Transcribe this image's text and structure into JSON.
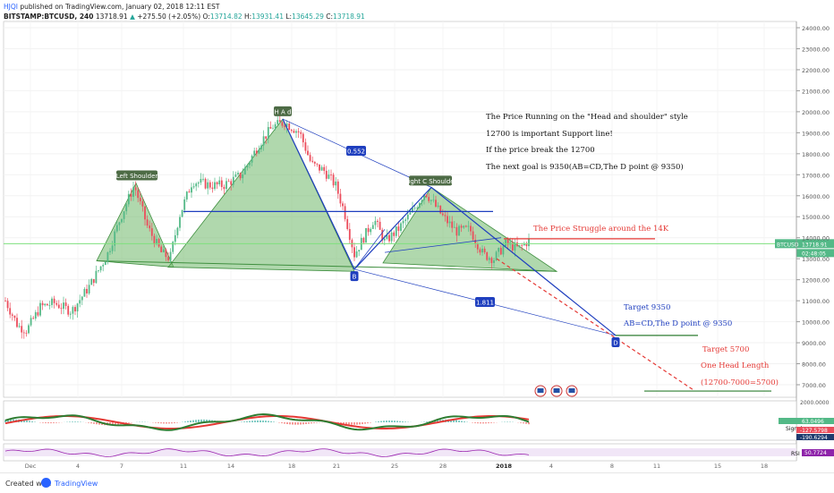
{
  "header": {
    "publisher": "HJQI",
    "published_line": "published on TradingView.com, January 02, 2018 12:11 EST",
    "symbol": "BITSTAMP:BTCUSD, 240",
    "last": "13718.91",
    "change": "+275.50 (+2.05%)",
    "ohlc": {
      "o_label": "O:",
      "o": "13714.82",
      "h_label": "H:",
      "h": "13931.41",
      "l_label": "L:",
      "l": "13645.29",
      "c_label": "C:",
      "c": "13718.91"
    }
  },
  "footer": {
    "created_with": "Created with",
    "brand": "TradingView"
  },
  "colors": {
    "up": "#26a69a",
    "down": "#ef5350",
    "candle_up": "#53b987",
    "candle_down": "#eb4d5c",
    "pattern_fill": "#6fb86a",
    "blue": "#1f3fbf",
    "red": "#e53935",
    "green_line": "#2e7d32",
    "price_line": "#7ee07e"
  },
  "chart_data": {
    "type": "candlestick",
    "symbol": "BITSTAMP:BTCUSD",
    "timeframe": "240",
    "y_axis": {
      "ticks": [
        24000,
        23000,
        22000,
        21000,
        20000,
        19000,
        18000,
        17000,
        16000,
        15000,
        14000,
        13000,
        12000,
        11000,
        10000,
        9000,
        8000,
        7000
      ],
      "tick_labels": [
        "24000.00",
        "23000.00",
        "22000.00",
        "21000.00",
        "20000.00",
        "19000.00",
        "18000.00",
        "17000.00",
        "16000.00",
        "15000.00",
        "14000.00",
        "13000.00",
        "12000.00",
        "11000.00",
        "10000.00",
        "9000.00",
        "8000.00",
        "7000.00"
      ],
      "range": [
        6700,
        24200
      ]
    },
    "x_axis": {
      "tick_labels": [
        "Dec",
        "4",
        "7",
        "11",
        "14",
        "18",
        "21",
        "25",
        "28",
        "2018",
        "4",
        "8",
        "11",
        "15",
        "18"
      ]
    },
    "price_label": {
      "text": "BTCUSD",
      "value": "13718.91",
      "sub": "02:48:05"
    },
    "pattern": {
      "left_shoulder": {
        "label": "Left Shoulder",
        "price": 16600
      },
      "head": {
        "label": "H A d",
        "price": 19650
      },
      "right_shoulder": {
        "label": "Right C Shoulder",
        "price": 16400
      },
      "neckline": 12700,
      "b_point": {
        "label": "B",
        "price": 12700
      },
      "d_point": {
        "label": "D",
        "price": 9350
      },
      "fib_1": "0.552",
      "fib_2": "1.811",
      "blue_resistance": 15250,
      "red_line": 13950,
      "target_9350_line": 9350,
      "target_5700_line": 6700
    },
    "annotations": {
      "note_lines": [
        "The Price Running on the \"Head and shoulder\" style",
        "12700 is important Support line!",
        "If the price break the 12700",
        "The next goal is 9350(AB=CD,The D point @ 9350)"
      ],
      "struggle": "The Price Struggle around the 14K",
      "target1": "Target 9350",
      "target1_sub": "AB=CD,The D point @ 9350",
      "target2": "Target 5700",
      "target2_sub": "One Head Length",
      "target2_calc": "(12700-7000=5700)"
    },
    "macd_panel": {
      "y_labels": [
        "2000.0000",
        "63.0496",
        "-127.5798",
        "-190.6294"
      ],
      "signal_label": "Signal"
    },
    "rsi_panel": {
      "label": "RSI",
      "value": "50.7724"
    }
  }
}
